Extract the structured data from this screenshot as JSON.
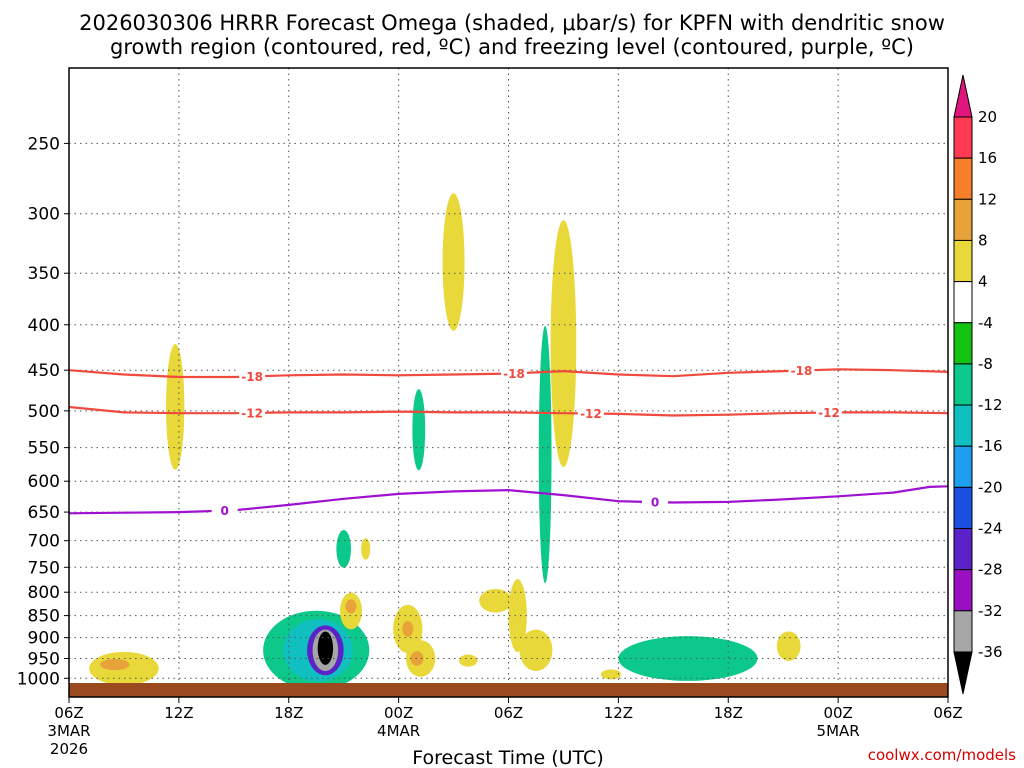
{
  "chart_data": {
    "type": "heatmap",
    "title_lines": [
      "2026030306 HRRR Forecast Omega (shaded, μbar/s) for KPFN with dendritic snow",
      "growth region (contoured, red, ºC) and freezing level (contoured, purple, ºC)"
    ],
    "xlabel": "Forecast Time (UTC)",
    "credit": "coolwx.com/models",
    "x_hours_range": [
      0,
      48
    ],
    "x_ticks": [
      {
        "hour": 0,
        "label": "06Z",
        "date1": "3MAR",
        "date2": "2026"
      },
      {
        "hour": 6,
        "label": "12Z"
      },
      {
        "hour": 12,
        "label": "18Z"
      },
      {
        "hour": 18,
        "label": "00Z",
        "date1": "4MAR"
      },
      {
        "hour": 24,
        "label": "06Z"
      },
      {
        "hour": 30,
        "label": "12Z"
      },
      {
        "hour": 36,
        "label": "18Z"
      },
      {
        "hour": 42,
        "label": "00Z",
        "date1": "5MAR"
      },
      {
        "hour": 48,
        "label": "06Z"
      }
    ],
    "y_ticks": [
      250,
      300,
      350,
      400,
      450,
      500,
      550,
      600,
      650,
      700,
      750,
      800,
      850,
      900,
      950,
      1000
    ],
    "colorbar": {
      "labels": [
        20,
        16,
        12,
        8,
        4,
        -4,
        -8,
        -12,
        -16,
        -20,
        -24,
        -28,
        -32,
        -36
      ],
      "colors": [
        "#ff3a52",
        "#f77f2a",
        "#e8a23a",
        "#e8d83a",
        "#ffffff",
        "#12c312",
        "#0cc88a",
        "#10c0c0",
        "#1ea0f0",
        "#1a50e0",
        "#5a22c8",
        "#9a10c0",
        "#a6a6a6"
      ],
      "top_color": "#e0157e",
      "bottom_color": "#000000"
    },
    "contours": [
      {
        "name": "dgz-upper",
        "label": "-18",
        "color": "#f04a3e",
        "points": [
          [
            0,
            450
          ],
          [
            3,
            455
          ],
          [
            6,
            458
          ],
          [
            9,
            458
          ],
          [
            12,
            456
          ],
          [
            15,
            455
          ],
          [
            18,
            456
          ],
          [
            21,
            455
          ],
          [
            24,
            454
          ],
          [
            27,
            451
          ],
          [
            30,
            455
          ],
          [
            33,
            457
          ],
          [
            36,
            453
          ],
          [
            39,
            451
          ],
          [
            42,
            449
          ],
          [
            45,
            450
          ],
          [
            48,
            452
          ]
        ],
        "label_hours": [
          10,
          24.3,
          40
        ]
      },
      {
        "name": "dgz-lower",
        "label": "-12",
        "color": "#f04a3e",
        "points": [
          [
            0,
            495
          ],
          [
            3,
            502
          ],
          [
            6,
            503
          ],
          [
            9,
            503
          ],
          [
            12,
            502
          ],
          [
            15,
            502
          ],
          [
            18,
            501
          ],
          [
            21,
            502
          ],
          [
            24,
            502
          ],
          [
            27,
            503
          ],
          [
            30,
            504
          ],
          [
            33,
            506
          ],
          [
            36,
            505
          ],
          [
            39,
            503
          ],
          [
            42,
            502
          ],
          [
            45,
            502
          ],
          [
            48,
            503
          ]
        ],
        "label_hours": [
          10,
          28.5,
          41.5
        ]
      },
      {
        "name": "freezing-level",
        "label": "0",
        "color": "#a010d0",
        "points": [
          [
            0,
            652
          ],
          [
            3,
            651
          ],
          [
            6,
            650
          ],
          [
            9,
            647
          ],
          [
            12,
            638
          ],
          [
            15,
            628
          ],
          [
            18,
            620
          ],
          [
            21,
            616
          ],
          [
            24,
            614
          ],
          [
            27,
            622
          ],
          [
            30,
            632
          ],
          [
            33,
            634
          ],
          [
            36,
            633
          ],
          [
            39,
            629
          ],
          [
            42,
            624
          ],
          [
            45,
            618
          ],
          [
            47,
            609
          ],
          [
            48,
            608
          ]
        ],
        "label_hours": [
          8.5,
          32
        ]
      }
    ],
    "omega_features": [
      {
        "name": "yellow",
        "hour": 3,
        "p": 975,
        "rx_h": 1.9,
        "ry_p": 42,
        "value": 5
      },
      {
        "name": "orange",
        "hour": 2.5,
        "p": 965,
        "rx_h": 0.8,
        "ry_p": 14,
        "value": 9
      },
      {
        "name": "yellow",
        "hour": 5.8,
        "p": 495,
        "rx_h": 0.5,
        "ry_p": 80,
        "value": 5
      },
      {
        "name": "green",
        "hour": 13.5,
        "p": 930,
        "rx_h": 2.9,
        "ry_p": 95,
        "value": -8
      },
      {
        "name": "teal",
        "hour": 13.6,
        "p": 930,
        "rx_h": 1.9,
        "ry_p": 75,
        "value": -12
      },
      {
        "name": "blue",
        "hour": 14.0,
        "p": 930,
        "rx_h": 1.0,
        "ry_p": 60,
        "value": -24
      },
      {
        "name": "purple",
        "hour": 14.0,
        "p": 930,
        "rx_h": 0.7,
        "ry_p": 50,
        "value": -32
      },
      {
        "name": "black",
        "hour": 14.0,
        "p": 925,
        "rx_h": 0.42,
        "ry_p": 40,
        "value": -40
      },
      {
        "name": "green",
        "hour": 15.0,
        "p": 715,
        "rx_h": 0.4,
        "ry_p": 35,
        "value": -8
      },
      {
        "name": "yellow",
        "hour": 16.2,
        "p": 715,
        "rx_h": 0.25,
        "ry_p": 20,
        "value": 5
      },
      {
        "name": "yellow",
        "hour": 15.4,
        "p": 840,
        "rx_h": 0.6,
        "ry_p": 40,
        "value": 5
      },
      {
        "name": "orange",
        "hour": 15.4,
        "p": 830,
        "rx_h": 0.3,
        "ry_p": 15,
        "value": 9
      },
      {
        "name": "yellow",
        "hour": 18.5,
        "p": 880,
        "rx_h": 0.8,
        "ry_p": 55,
        "value": 5
      },
      {
        "name": "orange",
        "hour": 18.5,
        "p": 880,
        "rx_h": 0.3,
        "ry_p": 18,
        "value": 9
      },
      {
        "name": "yellow",
        "hour": 19.2,
        "p": 950,
        "rx_h": 0.8,
        "ry_p": 45,
        "value": 5
      },
      {
        "name": "orange",
        "hour": 19.0,
        "p": 950,
        "rx_h": 0.35,
        "ry_p": 18,
        "value": 9
      },
      {
        "name": "green",
        "hour": 19.1,
        "p": 525,
        "rx_h": 0.35,
        "ry_p": 55,
        "value": -8
      },
      {
        "name": "yellow",
        "hour": 21.0,
        "p": 340,
        "rx_h": 0.6,
        "ry_p": 60,
        "value": 5
      },
      {
        "name": "yellow",
        "hour": 23.3,
        "p": 818,
        "rx_h": 0.9,
        "ry_p": 25,
        "value": 5
      },
      {
        "name": "yellow",
        "hour": 24.5,
        "p": 850,
        "rx_h": 0.5,
        "ry_p": 80,
        "value": 5
      },
      {
        "name": "yellow",
        "hour": 25.5,
        "p": 930,
        "rx_h": 0.9,
        "ry_p": 50,
        "value": 5
      },
      {
        "name": "green",
        "hour": 26.0,
        "p": 560,
        "rx_h": 0.35,
        "ry_p": 180,
        "value": -8
      },
      {
        "name": "yellow",
        "hour": 27.0,
        "p": 420,
        "rx_h": 0.7,
        "ry_p": 130,
        "value": 5
      },
      {
        "name": "yellow",
        "hour": 21.8,
        "p": 955,
        "rx_h": 0.5,
        "ry_p": 15,
        "value": 5
      },
      {
        "name": "yellow",
        "hour": 29.6,
        "p": 990,
        "rx_h": 0.55,
        "ry_p": 13,
        "value": 5
      },
      {
        "name": "green",
        "hour": 33.8,
        "p": 950,
        "rx_h": 3.8,
        "ry_p": 55,
        "value": -8
      },
      {
        "name": "yellow",
        "hour": 39.3,
        "p": 920,
        "rx_h": 0.65,
        "ry_p": 35,
        "value": 5
      }
    ]
  }
}
